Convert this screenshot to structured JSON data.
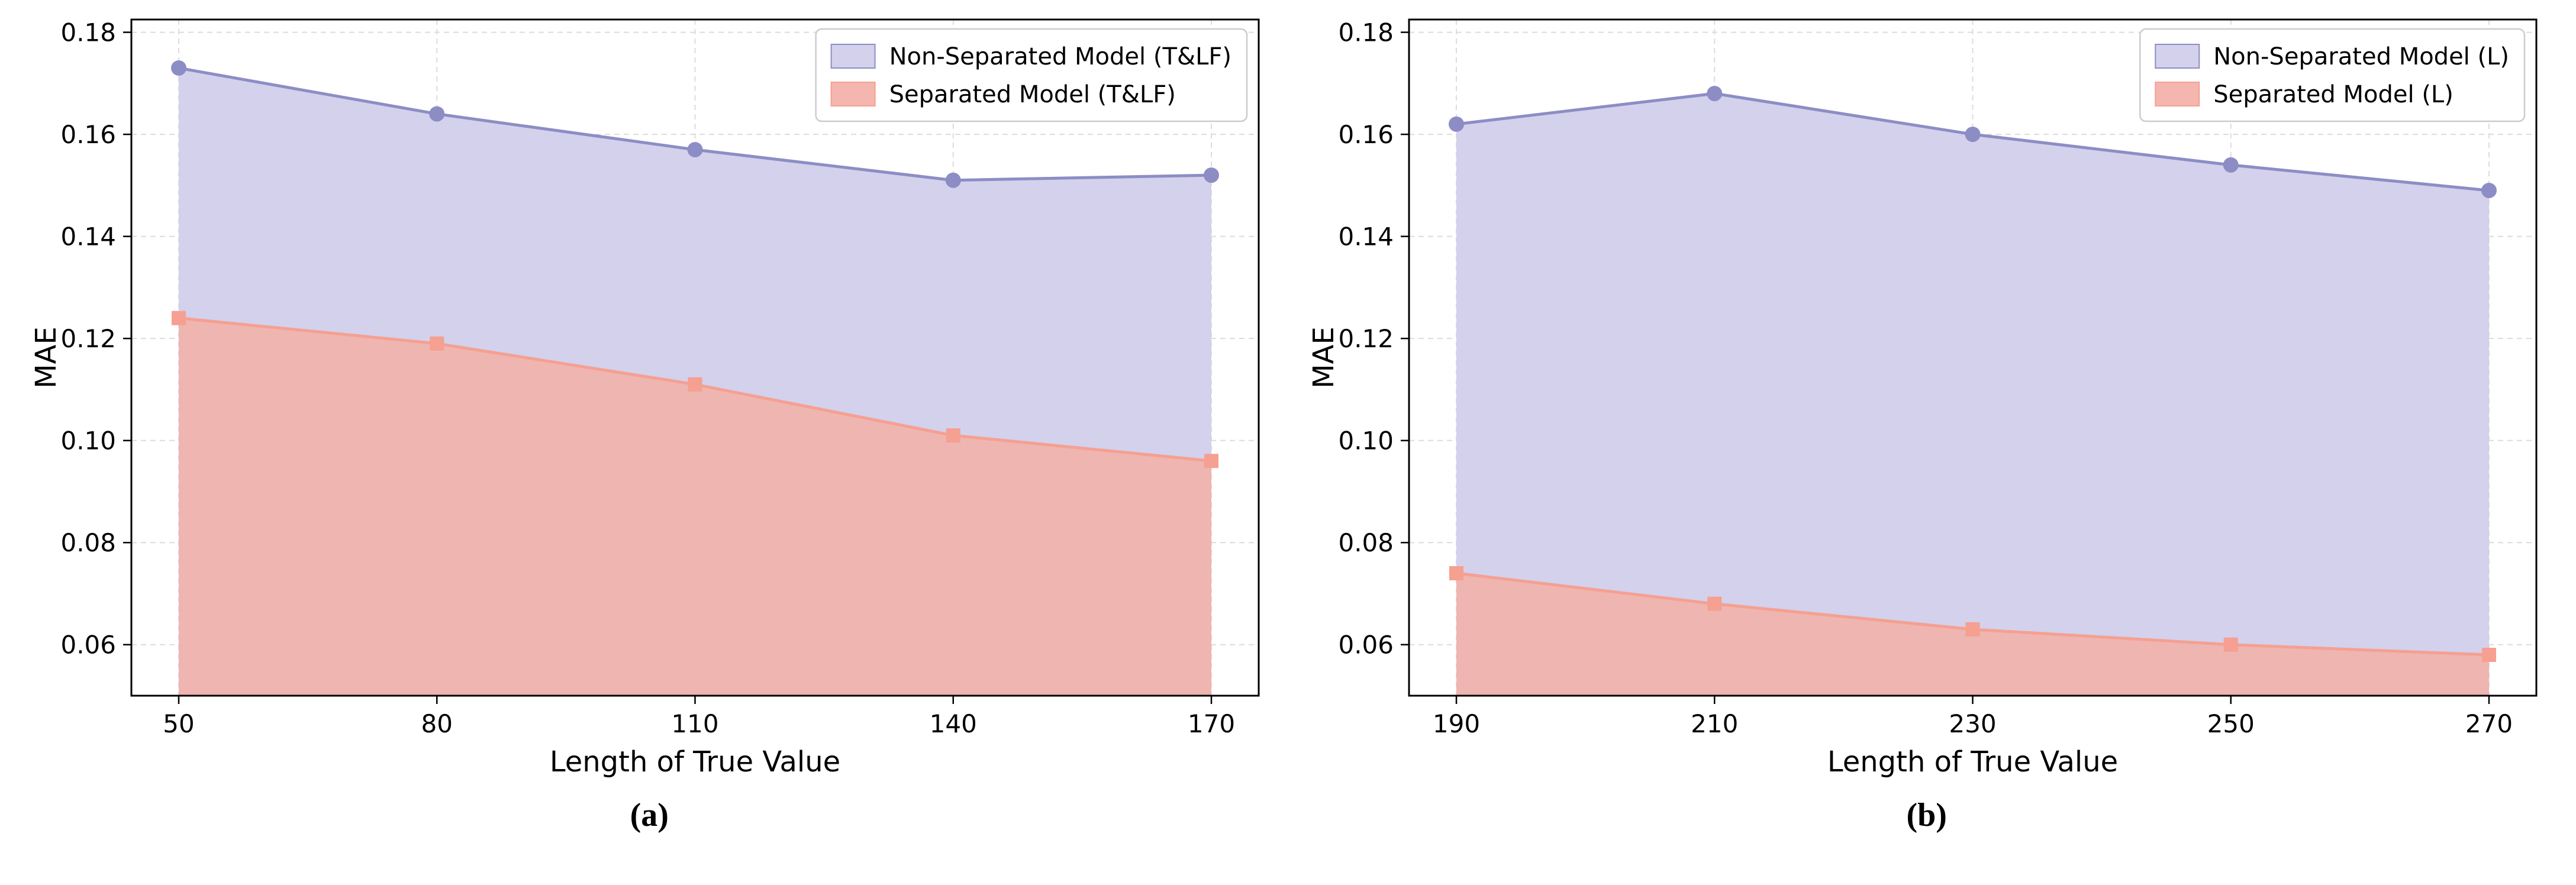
{
  "figure": {
    "background": "#ffffff",
    "text_color": "#000000",
    "grid_color": "#dcdcdc",
    "legend_border_color": "#cccccc"
  },
  "chart_data": [
    {
      "type": "area",
      "subplot_label": "(a)",
      "title": "",
      "xlabel": "Length of True Value",
      "ylabel": "MAE",
      "x": [
        50,
        80,
        110,
        140,
        170
      ],
      "yticks": [
        "0.06",
        "0.08",
        "0.10",
        "0.12",
        "0.14",
        "0.16",
        "0.18"
      ],
      "ylim": [
        0.05,
        0.1825
      ],
      "grid": true,
      "legend_position": "top-right",
      "series": [
        {
          "name": "Non-Separated Model (T&LF)",
          "values": [
            0.173,
            0.164,
            0.157,
            0.151,
            0.152
          ],
          "line_color": "#8d8dc5",
          "fill_color": "#d3d1ec",
          "fill_opacity": 1,
          "marker": "circle"
        },
        {
          "name": "Separated Model (T&LF)",
          "values": [
            0.124,
            0.119,
            0.111,
            0.101,
            0.096
          ],
          "line_color": "#f5a091",
          "fill_color": "#f3b0a9",
          "fill_opacity": 0.88,
          "marker": "square"
        }
      ]
    },
    {
      "type": "area",
      "subplot_label": "(b)",
      "title": "",
      "xlabel": "Length of True Value",
      "ylabel": "MAE",
      "x": [
        190,
        210,
        230,
        250,
        270
      ],
      "yticks": [
        "0.06",
        "0.08",
        "0.10",
        "0.12",
        "0.14",
        "0.16",
        "0.18"
      ],
      "ylim": [
        0.05,
        0.1825
      ],
      "grid": true,
      "legend_position": "top-right",
      "series": [
        {
          "name": "Non-Separated Model (L)",
          "values": [
            0.162,
            0.168,
            0.16,
            0.154,
            0.149
          ],
          "line_color": "#8d8dc5",
          "fill_color": "#d3d1ec",
          "fill_opacity": 1,
          "marker": "circle"
        },
        {
          "name": "Separated Model (L)",
          "values": [
            0.074,
            0.068,
            0.063,
            0.06,
            0.058
          ],
          "line_color": "#f5a091",
          "fill_color": "#f3b0a9",
          "fill_opacity": 0.88,
          "marker": "square"
        }
      ]
    }
  ]
}
